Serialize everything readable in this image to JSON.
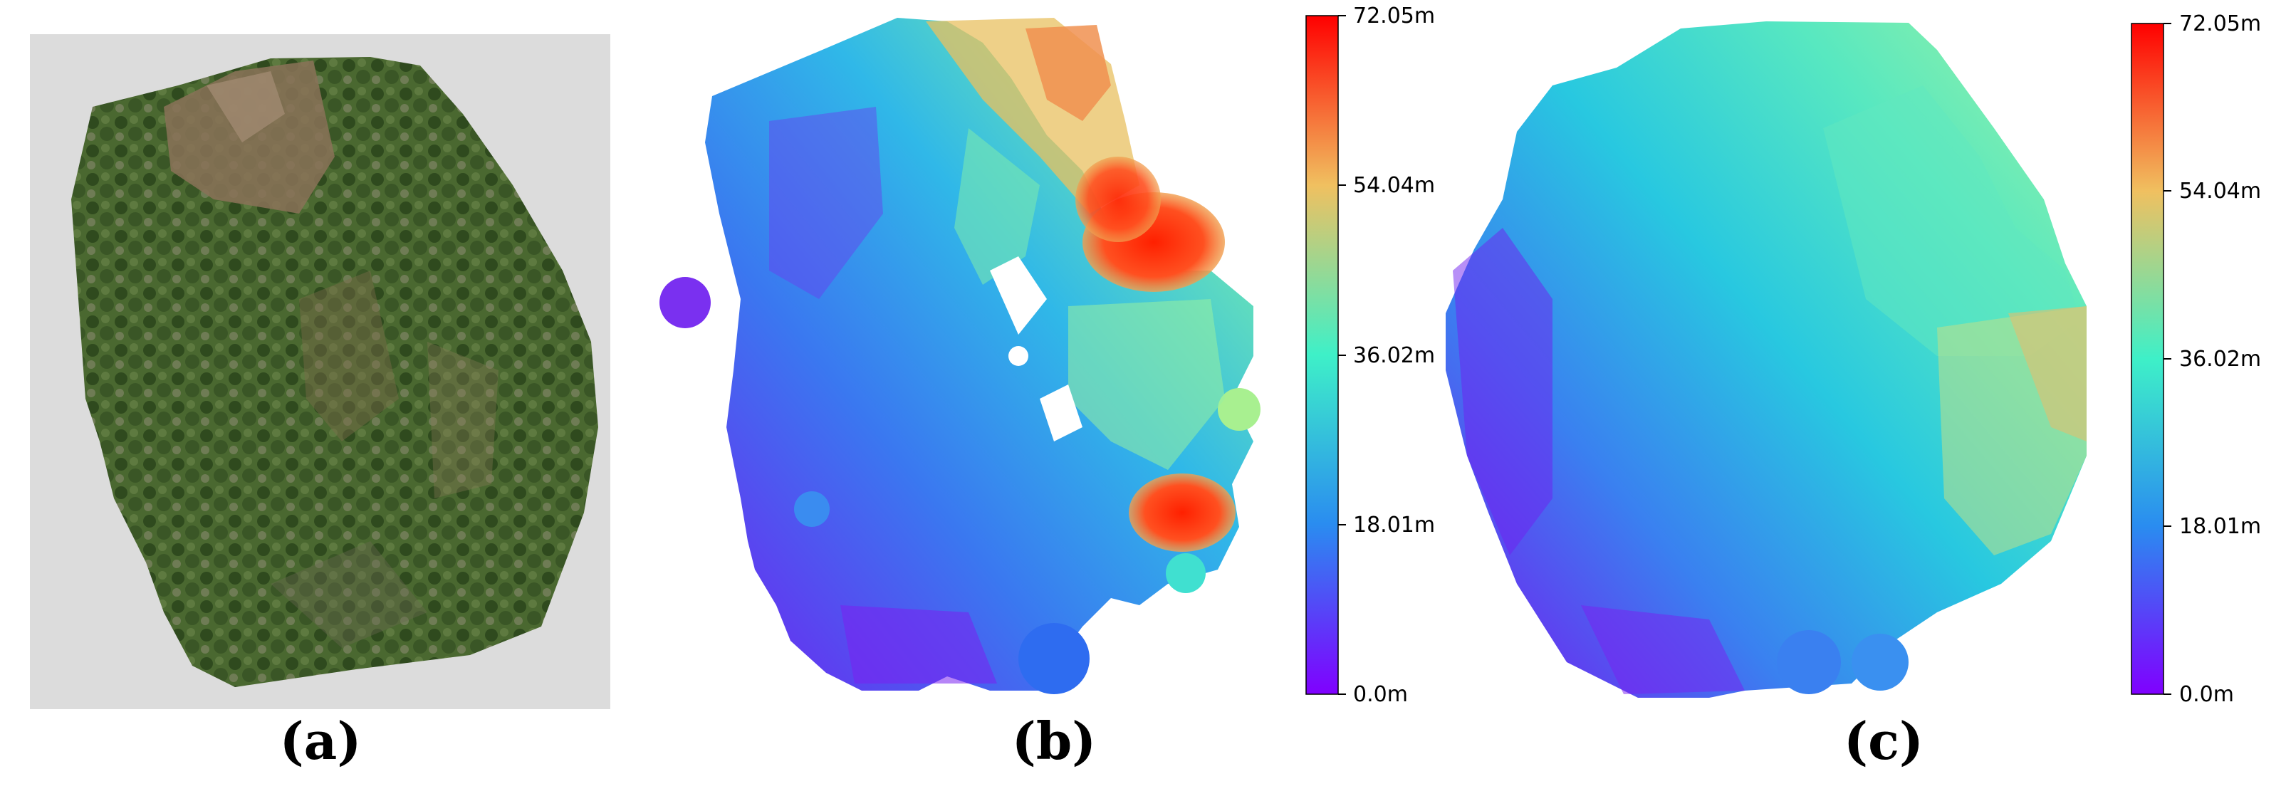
{
  "figure": {
    "panels": [
      {
        "id": "a",
        "caption": "(a)",
        "content": "aerial orthomosaic image"
      },
      {
        "id": "b",
        "caption": "(b)",
        "content": "sparse height map"
      },
      {
        "id": "c",
        "caption": "(c)",
        "content": "dense height map"
      }
    ]
  },
  "chart_data": [
    {
      "type": "heatmap",
      "panel": "b",
      "colormap": "rainbow",
      "colorbar": {
        "min": 0.0,
        "max": 72.05,
        "unit": "m",
        "ticks": [
          "72.05m",
          "54.04m",
          "36.02m",
          "18.01m",
          "0.0m"
        ],
        "tick_values": [
          72.05,
          54.04,
          36.02,
          18.01,
          0.0
        ]
      }
    },
    {
      "type": "heatmap",
      "panel": "c",
      "colormap": "rainbow",
      "colorbar": {
        "min": 0.0,
        "max": 72.05,
        "unit": "m",
        "ticks": [
          "72.05m",
          "54.04m",
          "36.02m",
          "18.01m",
          "0.0m"
        ],
        "tick_values": [
          72.05,
          54.04,
          36.02,
          18.01,
          0.0
        ]
      }
    }
  ]
}
